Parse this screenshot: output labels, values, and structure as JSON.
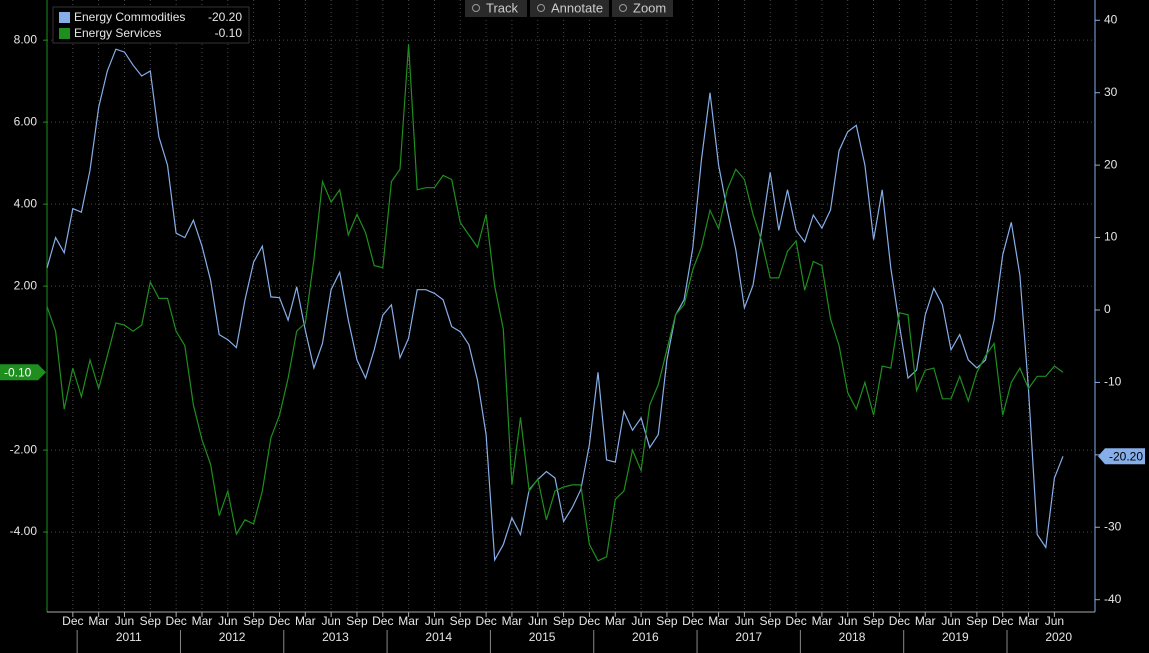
{
  "chart_data": {
    "type": "line",
    "toolbar": [
      "Track",
      "Annotate",
      "Zoom"
    ],
    "x": [
      "2010-09",
      "2010-10",
      "2010-11",
      "2010-12",
      "2011-01",
      "2011-02",
      "2011-03",
      "2011-04",
      "2011-05",
      "2011-06",
      "2011-07",
      "2011-08",
      "2011-09",
      "2011-10",
      "2011-11",
      "2011-12",
      "2012-01",
      "2012-02",
      "2012-03",
      "2012-04",
      "2012-05",
      "2012-06",
      "2012-07",
      "2012-08",
      "2012-09",
      "2012-10",
      "2012-11",
      "2012-12",
      "2013-01",
      "2013-02",
      "2013-03",
      "2013-04",
      "2013-05",
      "2013-06",
      "2013-07",
      "2013-08",
      "2013-09",
      "2013-10",
      "2013-11",
      "2013-12",
      "2014-01",
      "2014-02",
      "2014-03",
      "2014-04",
      "2014-05",
      "2014-06",
      "2014-07",
      "2014-08",
      "2014-09",
      "2014-10",
      "2014-11",
      "2014-12",
      "2015-01",
      "2015-02",
      "2015-03",
      "2015-04",
      "2015-05",
      "2015-06",
      "2015-07",
      "2015-08",
      "2015-09",
      "2015-10",
      "2015-11",
      "2015-12",
      "2016-01",
      "2016-02",
      "2016-03",
      "2016-04",
      "2016-05",
      "2016-06",
      "2016-07",
      "2016-08",
      "2016-09",
      "2016-10",
      "2016-11",
      "2016-12",
      "2017-01",
      "2017-02",
      "2017-03",
      "2017-04",
      "2017-05",
      "2017-06",
      "2017-07",
      "2017-08",
      "2017-09",
      "2017-10",
      "2017-11",
      "2017-12",
      "2018-01",
      "2018-02",
      "2018-03",
      "2018-04",
      "2018-05",
      "2018-06",
      "2018-07",
      "2018-08",
      "2018-09",
      "2018-10",
      "2018-11",
      "2018-12",
      "2019-01",
      "2019-02",
      "2019-03",
      "2019-04",
      "2019-05",
      "2019-06",
      "2019-07",
      "2019-08",
      "2019-09",
      "2019-10",
      "2019-11",
      "2019-12",
      "2020-01",
      "2020-02",
      "2020-03",
      "2020-04",
      "2020-05",
      "2020-06",
      "2020-07"
    ],
    "series": [
      {
        "name": "Energy Commodities",
        "color": "#86aee8",
        "axis": "y2",
        "last_label": "-20.20",
        "values": [
          5.8,
          10,
          7.9,
          14,
          13.5,
          19.3,
          28,
          33,
          36,
          35.6,
          33.8,
          32.3,
          33,
          23.9,
          20,
          10.6,
          10,
          12.4,
          8.8,
          4.1,
          -3.4,
          -4.1,
          -5.2,
          1.4,
          6.6,
          8.8,
          1.8,
          1.7,
          -1.4,
          3.2,
          -2.8,
          -8,
          -4.6,
          2.8,
          5.2,
          -1.4,
          -6.9,
          -9.4,
          -5.5,
          -0.7,
          0.7,
          -6.6,
          -3.9,
          2.8,
          2.8,
          2.3,
          1.4,
          -2.3,
          -3,
          -4.8,
          -9.7,
          -17.2,
          -34.5,
          -32.4,
          -28.7,
          -31,
          -24.8,
          -23.4,
          -22.3,
          -23.2,
          -29.2,
          -27.3,
          -24.8,
          -18.6,
          -8.6,
          -20.7,
          -21,
          -14,
          -16.6,
          -14.9,
          -19,
          -17.2,
          -6.9,
          -0.7,
          1.4,
          8.6,
          20.7,
          30,
          20,
          13.8,
          8.3,
          0.3,
          3.4,
          11,
          19,
          11,
          16.6,
          11,
          9.4,
          13.1,
          11.3,
          13.8,
          22,
          24.6,
          25.5,
          20,
          9.7,
          16.6,
          5.8,
          -2.1,
          -9.4,
          -8.3,
          -0.7,
          3,
          0.7,
          -5.5,
          -3.4,
          -6.9,
          -8,
          -6.9,
          -1.4,
          7.6,
          12.1,
          4.8,
          -11,
          -31,
          -32.8,
          -23.2,
          -20.2
        ]
      },
      {
        "name": "Energy Services",
        "color": "#1e8f1e",
        "axis": "y",
        "last_label": "-0.10",
        "values": [
          1.5,
          0.9,
          -1,
          0,
          -0.7,
          0.2,
          -0.5,
          0.3,
          1.1,
          1.05,
          0.9,
          1.05,
          2.1,
          1.7,
          1.7,
          0.9,
          0.55,
          -0.9,
          -1.75,
          -2.35,
          -3.6,
          -3,
          -4.05,
          -3.7,
          -3.8,
          -3,
          -1.7,
          -1.15,
          -0.25,
          0.9,
          1.1,
          2.65,
          4.55,
          4.05,
          4.35,
          3.25,
          3.75,
          3.3,
          2.5,
          2.45,
          4.55,
          4.85,
          7.9,
          4.35,
          4.4,
          4.4,
          4.7,
          4.6,
          3.55,
          3.25,
          2.95,
          3.75,
          2,
          0.95,
          -2.85,
          -1.2,
          -3,
          -2.7,
          -3.7,
          -3,
          -2.9,
          -2.85,
          -2.85,
          -4.3,
          -4.7,
          -4.6,
          -3.2,
          -3,
          -2,
          -2.5,
          -0.9,
          -0.4,
          0.45,
          1.3,
          1.55,
          2.4,
          2.95,
          3.85,
          3.4,
          4.35,
          4.85,
          4.6,
          3.75,
          3.1,
          2.2,
          2.2,
          2.85,
          3.1,
          1.9,
          2.6,
          2.5,
          1.2,
          0.55,
          -0.6,
          -1,
          -0.35,
          -1.15,
          0.05,
          0,
          1.35,
          1.3,
          -0.55,
          -0.05,
          0,
          -0.75,
          -0.75,
          -0.2,
          -0.8,
          -0.1,
          0.3,
          0.6,
          -1.15,
          -0.35,
          0,
          -0.5,
          -0.2,
          -0.2,
          0.05,
          -0.1
        ]
      }
    ],
    "ylim": [
      -5.95,
      8.98
    ],
    "yticks": [
      {
        "value": -4,
        "label": "-4.00"
      },
      {
        "value": -2,
        "label": "-2.00"
      },
      {
        "value": 2,
        "label": "2.00"
      },
      {
        "value": 4,
        "label": "4.00"
      },
      {
        "value": 6,
        "label": "6.00"
      },
      {
        "value": 8,
        "label": "8.00"
      }
    ],
    "y2lim": [
      -41.7,
      42.8
    ],
    "y2ticks": [
      -40,
      -30,
      -20,
      -10,
      0,
      10,
      20,
      30,
      40
    ],
    "xticks": [
      {
        "value": "2010-12",
        "label": "Dec"
      },
      {
        "value": "2011-03",
        "label": "Mar"
      },
      {
        "value": "2011-06",
        "label": "Jun"
      },
      {
        "value": "2011-09",
        "label": "Sep"
      },
      {
        "value": "2011-12",
        "label": "Dec"
      },
      {
        "value": "2012-03",
        "label": "Mar"
      },
      {
        "value": "2012-06",
        "label": "Jun"
      },
      {
        "value": "2012-09",
        "label": "Sep"
      },
      {
        "value": "2012-12",
        "label": "Dec"
      },
      {
        "value": "2013-03",
        "label": "Mar"
      },
      {
        "value": "2013-06",
        "label": "Jun"
      },
      {
        "value": "2013-09",
        "label": "Sep"
      },
      {
        "value": "2013-12",
        "label": "Dec"
      },
      {
        "value": "2014-03",
        "label": "Mar"
      },
      {
        "value": "2014-06",
        "label": "Jun"
      },
      {
        "value": "2014-09",
        "label": "Sep"
      },
      {
        "value": "2014-12",
        "label": "Dec"
      },
      {
        "value": "2015-03",
        "label": "Mar"
      },
      {
        "value": "2015-06",
        "label": "Jun"
      },
      {
        "value": "2015-09",
        "label": "Sep"
      },
      {
        "value": "2015-12",
        "label": "Dec"
      },
      {
        "value": "2016-03",
        "label": "Mar"
      },
      {
        "value": "2016-06",
        "label": "Jun"
      },
      {
        "value": "2016-09",
        "label": "Sep"
      },
      {
        "value": "2016-12",
        "label": "Dec"
      },
      {
        "value": "2017-03",
        "label": "Mar"
      },
      {
        "value": "2017-06",
        "label": "Jun"
      },
      {
        "value": "2017-09",
        "label": "Sep"
      },
      {
        "value": "2017-12",
        "label": "Dec"
      },
      {
        "value": "2018-03",
        "label": "Mar"
      },
      {
        "value": "2018-06",
        "label": "Jun"
      },
      {
        "value": "2018-09",
        "label": "Sep"
      },
      {
        "value": "2018-12",
        "label": "Dec"
      },
      {
        "value": "2019-03",
        "label": "Mar"
      },
      {
        "value": "2019-06",
        "label": "Jun"
      },
      {
        "value": "2019-09",
        "label": "Sep"
      },
      {
        "value": "2019-12",
        "label": "Dec"
      },
      {
        "value": "2020-03",
        "label": "Mar"
      },
      {
        "value": "2020-06",
        "label": "Jun"
      }
    ],
    "year_ticks": [
      2011,
      2012,
      2013,
      2014,
      2015,
      2016,
      2017,
      2018,
      2019,
      2020
    ],
    "grid": true
  }
}
